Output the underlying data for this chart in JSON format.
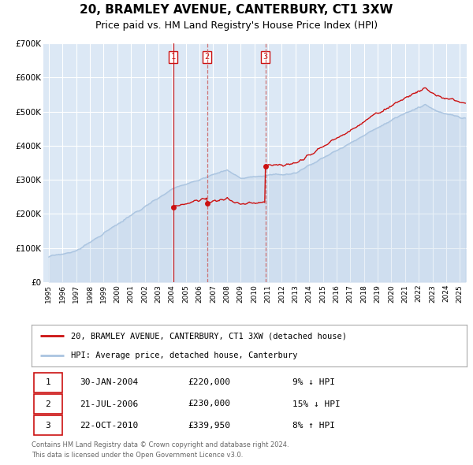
{
  "title": "20, BRAMLEY AVENUE, CANTERBURY, CT1 3XW",
  "subtitle": "Price paid vs. HM Land Registry's House Price Index (HPI)",
  "ylim": [
    0,
    700000
  ],
  "yticks": [
    0,
    100000,
    200000,
    300000,
    400000,
    500000,
    600000,
    700000
  ],
  "xlim_start": 1994.6,
  "xlim_end": 2025.5,
  "background_color": "#ffffff",
  "plot_bg_color": "#dce8f5",
  "grid_color": "#ffffff",
  "hpi_color": "#aac4e0",
  "price_color": "#cc1111",
  "sale_dates": [
    2004.08,
    2006.55,
    2010.81
  ],
  "sale_prices": [
    220000,
    230000,
    339950
  ],
  "sale_labels": [
    "1",
    "2",
    "3"
  ],
  "legend_price_label": "20, BRAMLEY AVENUE, CANTERBURY, CT1 3XW (detached house)",
  "legend_hpi_label": "HPI: Average price, detached house, Canterbury",
  "table_rows": [
    [
      "1",
      "30-JAN-2004",
      "£220,000",
      "9% ↓ HPI"
    ],
    [
      "2",
      "21-JUL-2006",
      "£230,000",
      "15% ↓ HPI"
    ],
    [
      "3",
      "22-OCT-2010",
      "£339,950",
      "8% ↑ HPI"
    ]
  ],
  "footnote1": "Contains HM Land Registry data © Crown copyright and database right 2024.",
  "footnote2": "This data is licensed under the Open Government Licence v3.0."
}
